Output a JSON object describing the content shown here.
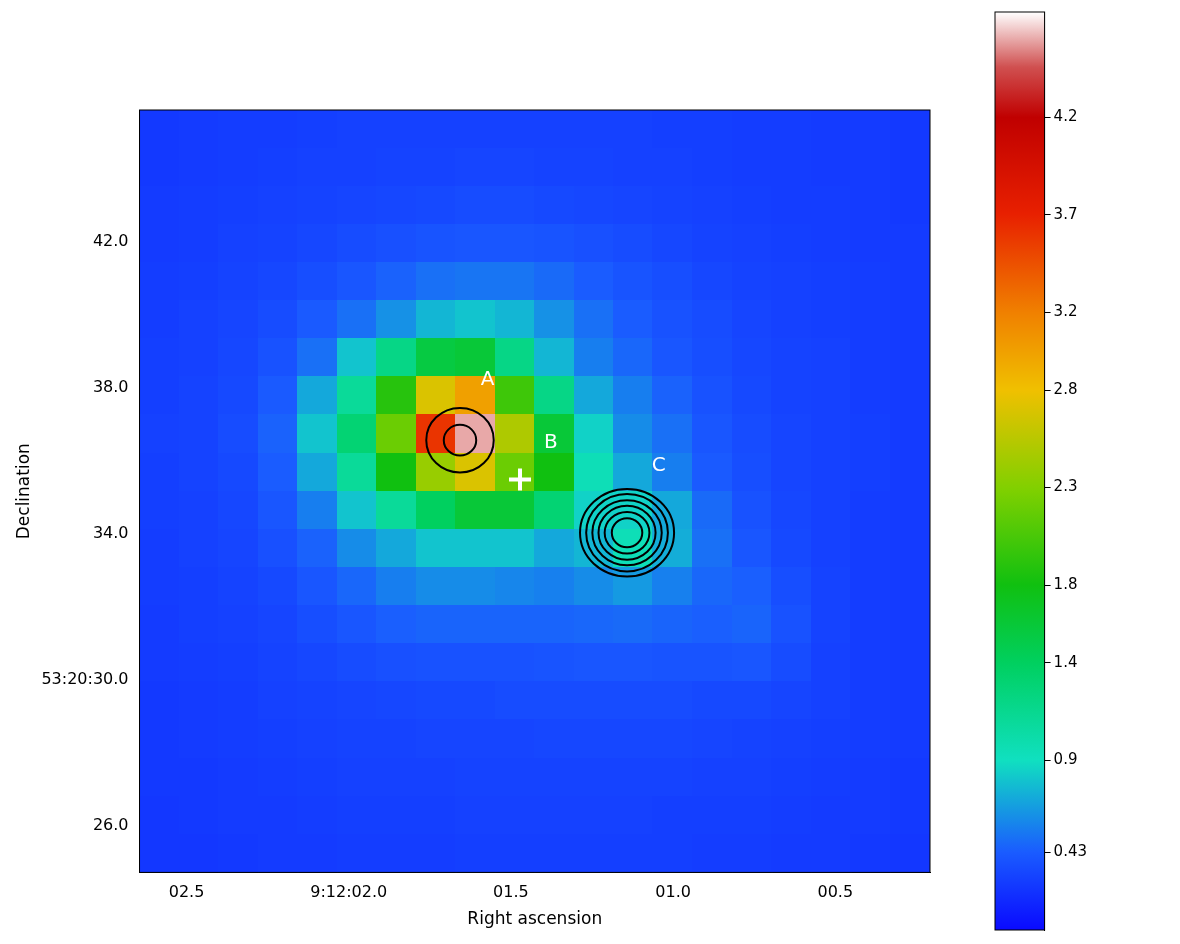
{
  "chart_data": {
    "type": "heatmap",
    "x_label": "Right ascension",
    "y_label": "Declination",
    "grid": false,
    "xlim": [
      2.645,
      0.208
    ],
    "xticks": [
      {
        "value": 2.5,
        "label": "02.5"
      },
      {
        "value": 2.0,
        "label": "9:12:02.0"
      },
      {
        "value": 1.5,
        "label": "01.5"
      },
      {
        "value": 1.0,
        "label": "01.0"
      },
      {
        "value": 0.5,
        "label": "00.5"
      }
    ],
    "ylim": [
      24.71,
      45.63
    ],
    "yticks": [
      {
        "value": 26,
        "label": "26.0"
      },
      {
        "value": 30,
        "label": "53:20:30.0"
      },
      {
        "value": 34,
        "label": "34.0"
      },
      {
        "value": 38,
        "label": "38.0"
      },
      {
        "value": 42,
        "label": "42.0"
      }
    ],
    "x": [
      2.584,
      2.462,
      2.34,
      2.219,
      2.097,
      1.975,
      1.853,
      1.732,
      1.61,
      1.488,
      1.366,
      1.244,
      1.123,
      1.001,
      0.879,
      0.757,
      0.635,
      0.514,
      0.392,
      0.27
    ],
    "y": [
      45.107,
      44.061,
      43.015,
      41.969,
      40.923,
      39.877,
      38.831,
      37.785,
      36.739,
      35.693,
      34.647,
      33.601,
      32.555,
      31.509,
      30.463,
      29.417,
      28.371,
      27.325,
      26.279,
      25.233
    ],
    "z": [
      [
        0.26,
        0.27,
        0.28,
        0.28,
        0.29,
        0.3,
        0.3,
        0.3,
        0.3,
        0.3,
        0.3,
        0.3,
        0.3,
        0.29,
        0.29,
        0.28,
        0.28,
        0.27,
        0.27,
        0.26
      ],
      [
        0.26,
        0.27,
        0.28,
        0.29,
        0.3,
        0.3,
        0.31,
        0.31,
        0.32,
        0.32,
        0.31,
        0.31,
        0.3,
        0.3,
        0.29,
        0.28,
        0.28,
        0.27,
        0.27,
        0.26
      ],
      [
        0.27,
        0.28,
        0.29,
        0.3,
        0.31,
        0.32,
        0.33,
        0.34,
        0.35,
        0.35,
        0.34,
        0.33,
        0.32,
        0.31,
        0.3,
        0.29,
        0.28,
        0.28,
        0.27,
        0.26
      ],
      [
        0.27,
        0.28,
        0.3,
        0.31,
        0.33,
        0.35,
        0.37,
        0.39,
        0.4,
        0.4,
        0.39,
        0.37,
        0.35,
        0.33,
        0.31,
        0.3,
        0.29,
        0.28,
        0.27,
        0.27
      ],
      [
        0.28,
        0.29,
        0.31,
        0.33,
        0.36,
        0.4,
        0.45,
        0.5,
        0.52,
        0.52,
        0.48,
        0.43,
        0.39,
        0.36,
        0.33,
        0.31,
        0.3,
        0.29,
        0.28,
        0.27
      ],
      [
        0.28,
        0.3,
        0.32,
        0.35,
        0.42,
        0.5,
        0.62,
        0.75,
        0.8,
        0.75,
        0.62,
        0.5,
        0.43,
        0.38,
        0.35,
        0.32,
        0.3,
        0.29,
        0.28,
        0.27
      ],
      [
        0.29,
        0.3,
        0.33,
        0.38,
        0.5,
        0.8,
        1.2,
        1.55,
        1.6,
        1.2,
        0.75,
        0.55,
        0.47,
        0.4,
        0.36,
        0.33,
        0.31,
        0.3,
        0.28,
        0.27
      ],
      [
        0.29,
        0.31,
        0.34,
        0.42,
        0.7,
        1.1,
        1.9,
        2.7,
        3.0,
        2.0,
        1.2,
        0.7,
        0.55,
        0.45,
        0.38,
        0.34,
        0.31,
        0.3,
        0.28,
        0.27
      ],
      [
        0.3,
        0.31,
        0.35,
        0.45,
        0.8,
        1.3,
        2.2,
        3.6,
        4.6,
        2.5,
        1.6,
        0.85,
        0.6,
        0.5,
        0.4,
        0.35,
        0.32,
        0.3,
        0.29,
        0.27
      ],
      [
        0.29,
        0.31,
        0.34,
        0.43,
        0.7,
        1.1,
        1.8,
        2.4,
        2.7,
        2.2,
        1.8,
        0.95,
        0.7,
        0.55,
        0.42,
        0.36,
        0.32,
        0.3,
        0.29,
        0.27
      ],
      [
        0.29,
        0.3,
        0.33,
        0.4,
        0.55,
        0.8,
        1.1,
        1.4,
        1.6,
        1.6,
        1.3,
        0.85,
        0.85,
        0.7,
        0.48,
        0.38,
        0.33,
        0.3,
        0.28,
        0.27
      ],
      [
        0.28,
        0.3,
        0.32,
        0.37,
        0.45,
        0.6,
        0.7,
        0.8,
        0.8,
        0.8,
        0.7,
        0.75,
        0.95,
        0.72,
        0.5,
        0.4,
        0.34,
        0.3,
        0.28,
        0.27
      ],
      [
        0.28,
        0.29,
        0.31,
        0.34,
        0.4,
        0.47,
        0.55,
        0.6,
        0.6,
        0.58,
        0.56,
        0.6,
        0.65,
        0.56,
        0.47,
        0.44,
        0.36,
        0.31,
        0.28,
        0.27
      ],
      [
        0.27,
        0.29,
        0.3,
        0.32,
        0.36,
        0.4,
        0.44,
        0.46,
        0.46,
        0.46,
        0.46,
        0.47,
        0.48,
        0.46,
        0.44,
        0.46,
        0.38,
        0.31,
        0.28,
        0.27
      ],
      [
        0.27,
        0.28,
        0.29,
        0.31,
        0.33,
        0.35,
        0.37,
        0.38,
        0.38,
        0.38,
        0.39,
        0.4,
        0.4,
        0.39,
        0.39,
        0.4,
        0.35,
        0.3,
        0.28,
        0.27
      ],
      [
        0.26,
        0.27,
        0.28,
        0.3,
        0.31,
        0.32,
        0.33,
        0.34,
        0.34,
        0.35,
        0.35,
        0.35,
        0.35,
        0.35,
        0.34,
        0.34,
        0.32,
        0.3,
        0.28,
        0.27
      ],
      [
        0.26,
        0.27,
        0.28,
        0.29,
        0.3,
        0.31,
        0.31,
        0.32,
        0.32,
        0.32,
        0.33,
        0.33,
        0.33,
        0.33,
        0.32,
        0.31,
        0.3,
        0.29,
        0.28,
        0.27
      ],
      [
        0.26,
        0.26,
        0.27,
        0.28,
        0.29,
        0.3,
        0.3,
        0.3,
        0.31,
        0.31,
        0.31,
        0.31,
        0.31,
        0.31,
        0.3,
        0.3,
        0.29,
        0.28,
        0.27,
        0.26
      ],
      [
        0.25,
        0.26,
        0.27,
        0.27,
        0.28,
        0.29,
        0.29,
        0.29,
        0.3,
        0.3,
        0.3,
        0.3,
        0.3,
        0.29,
        0.29,
        0.29,
        0.28,
        0.27,
        0.27,
        0.26
      ],
      [
        0.25,
        0.25,
        0.26,
        0.27,
        0.27,
        0.28,
        0.28,
        0.28,
        0.29,
        0.29,
        0.29,
        0.29,
        0.29,
        0.29,
        0.28,
        0.28,
        0.27,
        0.27,
        0.26,
        0.25
      ]
    ],
    "colorbar": {
      "range": [
        0.03,
        4.74
      ],
      "ticks": [
        0.43,
        0.9,
        1.4,
        1.8,
        2.3,
        2.8,
        3.2,
        3.7,
        4.2
      ]
    },
    "contours": [
      {
        "x": 1.657,
        "y": 36.57,
        "x_radius": [
          0.104,
          0.05
        ],
        "y_radius": [
          0.886,
          0.42
        ],
        "color": "#000000"
      },
      {
        "x": 1.142,
        "y": 34.03,
        "x_radius": [
          0.145,
          0.126,
          0.107,
          0.088,
          0.069,
          0.047
        ],
        "y_radius": [
          1.2,
          1.06,
          0.89,
          0.74,
          0.57,
          0.4
        ],
        "color": "#000000"
      }
    ],
    "markers": [
      {
        "x": 1.472,
        "y": 35.49,
        "marker": "cross",
        "color": "#ffffff"
      }
    ],
    "annotations": [
      {
        "text": "A",
        "x": 1.572,
        "y": 38.23
      },
      {
        "text": "B",
        "x": 1.377,
        "y": 36.49
      },
      {
        "text": "C",
        "x": 1.044,
        "y": 35.86
      }
    ]
  }
}
